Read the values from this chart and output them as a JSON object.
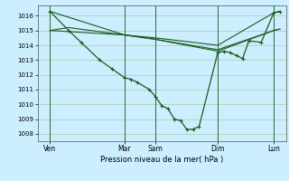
{
  "xlabel": "Pression niveau de la mer( hPa )",
  "bg_color": "#cceeff",
  "plot_bg_color": "#cceeff",
  "line_color": "#1a5c1a",
  "grid_color": "#aaccaa",
  "vline_color": "#336633",
  "ylim": [
    1007.5,
    1016.7
  ],
  "yticks": [
    1008,
    1009,
    1010,
    1011,
    1012,
    1013,
    1014,
    1015,
    1016
  ],
  "xlim": [
    0,
    20
  ],
  "xtick_labels": [
    "Ven",
    "Mar",
    "Sam",
    "Dim",
    "Lun"
  ],
  "xtick_positions": [
    1,
    7,
    9.5,
    14.5,
    19
  ],
  "vline_positions": [
    1,
    7,
    9.5,
    14.5,
    19
  ],
  "line1_main": {
    "x": [
      1.0,
      2.5,
      3.5,
      5.0,
      6.0,
      7.0,
      7.5,
      8.0,
      9.0,
      9.5,
      10.0,
      10.5,
      11.0,
      11.5,
      12.0,
      12.5,
      13.0,
      14.5,
      15.0,
      15.5,
      16.0,
      16.5,
      17.0,
      18.0,
      19.0,
      19.5
    ],
    "y": [
      1016.3,
      1015.0,
      1014.2,
      1013.0,
      1012.4,
      1011.8,
      1011.7,
      1011.5,
      1011.0,
      1010.5,
      1009.9,
      1009.7,
      1009.0,
      1008.9,
      1008.3,
      1008.3,
      1008.5,
      1013.5,
      1013.6,
      1013.5,
      1013.3,
      1013.1,
      1014.3,
      1014.2,
      1016.2,
      1016.3
    ]
  },
  "line2_smooth": {
    "x": [
      1.0,
      7.0,
      9.5,
      14.5,
      19.0,
      19.5
    ],
    "y": [
      1016.3,
      1014.7,
      1014.5,
      1014.0,
      1016.2,
      1016.3
    ]
  },
  "line3_smooth": {
    "x": [
      1.0,
      2.5,
      7.0,
      9.5,
      14.5,
      19.0,
      19.5
    ],
    "y": [
      1015.0,
      1015.2,
      1014.7,
      1014.4,
      1013.7,
      1015.0,
      1015.1
    ]
  },
  "line4_smooth": {
    "x": [
      1.0,
      7.0,
      9.5,
      14.5,
      19.0,
      19.5
    ],
    "y": [
      1015.0,
      1014.7,
      1014.4,
      1013.6,
      1015.0,
      1015.1
    ]
  }
}
